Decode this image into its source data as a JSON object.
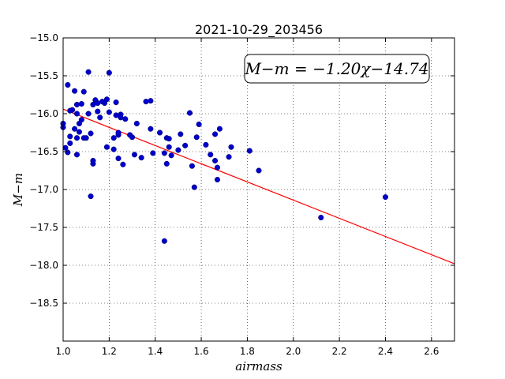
{
  "chart_data": {
    "type": "scatter",
    "title": "2021-10-29_203456",
    "xlabel": "airmass",
    "ylabel": "M−m",
    "xlim": [
      1.0,
      2.7
    ],
    "ylim": [
      -15.0,
      -19.0
    ],
    "y_inverted": true,
    "grid": true,
    "grid_style": "dotted",
    "xticks": [
      "1.0",
      "1.2",
      "1.4",
      "1.6",
      "1.8",
      "2.0",
      "2.2",
      "2.4",
      "2.6"
    ],
    "yticks": [
      "−15.0",
      "−15.5",
      "−16.0",
      "−16.5",
      "−17.0",
      "−17.5",
      "−18.0",
      "−18.5"
    ],
    "annotation": "M−m = −1.20χ−14.74",
    "annotation_placement": "top-right",
    "fit": {
      "slope": -1.2,
      "intercept": -14.74,
      "color": "#ff0000"
    },
    "point_color": "#0000cc",
    "points": [
      [
        1.0,
        -16.13
      ],
      [
        1.0,
        -16.18
      ],
      [
        1.01,
        -16.45
      ],
      [
        1.02,
        -16.51
      ],
      [
        1.02,
        -15.62
      ],
      [
        1.03,
        -16.3
      ],
      [
        1.03,
        -16.39
      ],
      [
        1.03,
        -15.96
      ],
      [
        1.04,
        -15.95
      ],
      [
        1.05,
        -15.7
      ],
      [
        1.05,
        -16.2
      ],
      [
        1.06,
        -15.88
      ],
      [
        1.06,
        -16.0
      ],
      [
        1.06,
        -16.32
      ],
      [
        1.06,
        -16.54
      ],
      [
        1.07,
        -16.13
      ],
      [
        1.07,
        -16.24
      ],
      [
        1.08,
        -16.08
      ],
      [
        1.08,
        -15.87
      ],
      [
        1.09,
        -15.71
      ],
      [
        1.09,
        -16.32
      ],
      [
        1.1,
        -16.32
      ],
      [
        1.11,
        -15.45
      ],
      [
        1.11,
        -16.0
      ],
      [
        1.12,
        -16.26
      ],
      [
        1.12,
        -17.09
      ],
      [
        1.13,
        -16.66
      ],
      [
        1.13,
        -16.62
      ],
      [
        1.13,
        -15.88
      ],
      [
        1.14,
        -15.82
      ],
      [
        1.15,
        -15.86
      ],
      [
        1.15,
        -15.97
      ],
      [
        1.16,
        -16.05
      ],
      [
        1.17,
        -15.84
      ],
      [
        1.18,
        -15.86
      ],
      [
        1.19,
        -15.81
      ],
      [
        1.19,
        -16.44
      ],
      [
        1.2,
        -15.46
      ],
      [
        1.2,
        -15.98
      ],
      [
        1.22,
        -16.47
      ],
      [
        1.22,
        -16.32
      ],
      [
        1.23,
        -16.02
      ],
      [
        1.23,
        -15.85
      ],
      [
        1.24,
        -16.28
      ],
      [
        1.24,
        -16.59
      ],
      [
        1.24,
        -16.25
      ],
      [
        1.25,
        -16.01
      ],
      [
        1.25,
        -16.05
      ],
      [
        1.26,
        -16.67
      ],
      [
        1.27,
        -16.07
      ],
      [
        1.29,
        -16.28
      ],
      [
        1.3,
        -16.31
      ],
      [
        1.31,
        -16.54
      ],
      [
        1.32,
        -16.13
      ],
      [
        1.34,
        -16.58
      ],
      [
        1.36,
        -15.84
      ],
      [
        1.38,
        -15.83
      ],
      [
        1.38,
        -16.2
      ],
      [
        1.39,
        -16.52
      ],
      [
        1.42,
        -16.25
      ],
      [
        1.44,
        -17.68
      ],
      [
        1.44,
        -16.52
      ],
      [
        1.45,
        -16.66
      ],
      [
        1.45,
        -16.32
      ],
      [
        1.46,
        -16.44
      ],
      [
        1.46,
        -16.33
      ],
      [
        1.47,
        -16.55
      ],
      [
        1.5,
        -16.48
      ],
      [
        1.51,
        -16.27
      ],
      [
        1.53,
        -16.42
      ],
      [
        1.55,
        -15.99
      ],
      [
        1.56,
        -16.69
      ],
      [
        1.57,
        -16.97
      ],
      [
        1.58,
        -16.31
      ],
      [
        1.59,
        -16.14
      ],
      [
        1.62,
        -16.41
      ],
      [
        1.64,
        -16.54
      ],
      [
        1.66,
        -16.27
      ],
      [
        1.66,
        -16.62
      ],
      [
        1.67,
        -16.71
      ],
      [
        1.67,
        -16.87
      ],
      [
        1.68,
        -16.2
      ],
      [
        1.72,
        -16.57
      ],
      [
        1.73,
        -16.44
      ],
      [
        1.81,
        -16.49
      ],
      [
        1.85,
        -16.75
      ],
      [
        2.12,
        -17.37
      ],
      [
        2.4,
        -17.1
      ]
    ]
  }
}
